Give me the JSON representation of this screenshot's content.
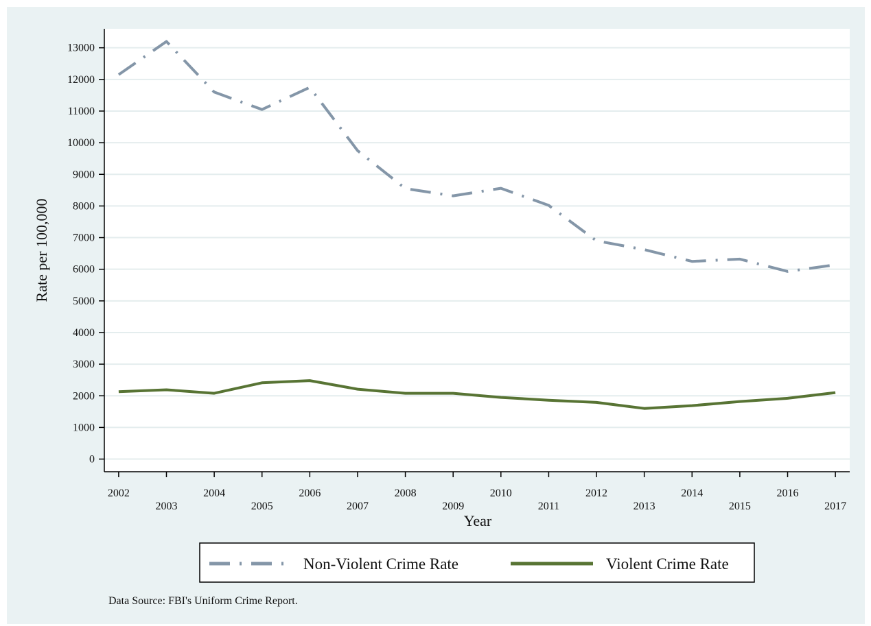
{
  "chart_data": {
    "type": "line",
    "xlabel": "Year",
    "ylabel": "Rate per 100,000",
    "x": [
      2002,
      2003,
      2004,
      2005,
      2006,
      2007,
      2008,
      2009,
      2010,
      2011,
      2012,
      2013,
      2014,
      2015,
      2016,
      2017
    ],
    "x_tick_labels": [
      "2002",
      "2003",
      "2004",
      "2005",
      "2006",
      "2007",
      "2008",
      "2009",
      "2010",
      "2011",
      "2012",
      "2013",
      "2014",
      "2015",
      "2016",
      "2017"
    ],
    "y_ticks": [
      0,
      1000,
      2000,
      3000,
      4000,
      5000,
      6000,
      7000,
      8000,
      9000,
      10000,
      11000,
      12000,
      13000
    ],
    "y_tick_labels": [
      "0",
      "1000",
      "2000",
      "3000",
      "4000",
      "5000",
      "6000",
      "7000",
      "8000",
      "9000",
      "10000",
      "11000",
      "12000",
      "13000"
    ],
    "ylim": [
      -400,
      13600
    ],
    "xlim": [
      2001.7,
      2017.3
    ],
    "grid": true,
    "legend_position": "bottom",
    "series": [
      {
        "name": "Non-Violent Crime Rate",
        "color": "#8496a8",
        "line_style": "dash-dot",
        "values": [
          12150,
          13200,
          11600,
          11050,
          11750,
          9750,
          8550,
          8320,
          8560,
          8020,
          6900,
          6620,
          6250,
          6320,
          5930,
          6140
        ]
      },
      {
        "name": "Violent Crime Rate",
        "color": "#587434",
        "line_style": "solid",
        "values": [
          2130,
          2190,
          2080,
          2410,
          2480,
          2210,
          2080,
          2080,
          1950,
          1860,
          1790,
          1600,
          1690,
          1820,
          1920,
          2100
        ]
      }
    ],
    "annotation": "Data Source: FBI's Uniform Crime Report."
  }
}
